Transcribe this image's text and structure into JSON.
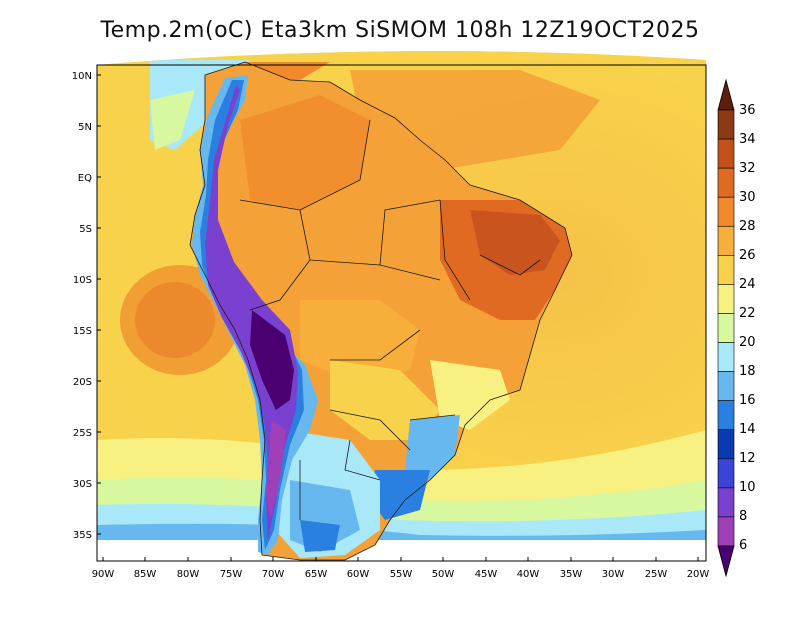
{
  "title": "Temp.2m(oC) Eta3km SiSMOM 108h 12Z19OCT2025",
  "map": {
    "variable": "2 m temperature",
    "units": "oC",
    "lat_labels": [
      "10N",
      "5N",
      "EQ",
      "5S",
      "10S",
      "15S",
      "20S",
      "25S",
      "30S",
      "35S"
    ],
    "lon_labels": [
      "90W",
      "85W",
      "80W",
      "75W",
      "70W",
      "65W",
      "60W",
      "55W",
      "50W",
      "45W",
      "40W",
      "35W",
      "30W",
      "25W",
      "20W"
    ]
  },
  "colorbar": {
    "labels": [
      "36",
      "34",
      "32",
      "30",
      "28",
      "26",
      "24",
      "22",
      "20",
      "18",
      "16",
      "14",
      "12",
      "10",
      "8",
      "6"
    ],
    "colors": [
      "#5c1f0c",
      "#8b3a14",
      "#c4501c",
      "#e06a22",
      "#f08a2c",
      "#f8ae3a",
      "#f8d24a",
      "#f8f080",
      "#d8f8a0",
      "#a8e8f8",
      "#68b8f0",
      "#2a80e0",
      "#0a3ab0",
      "#3a44d8",
      "#7a40d0",
      "#a040b8",
      "#4a0070"
    ]
  }
}
